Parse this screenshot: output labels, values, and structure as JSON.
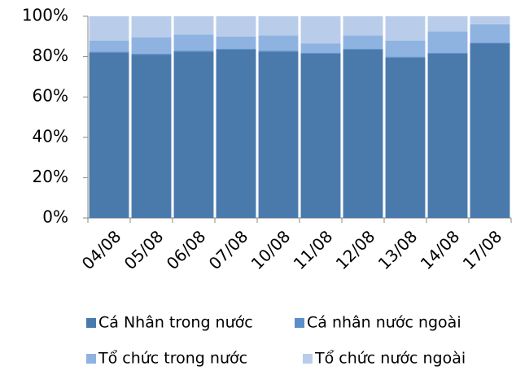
{
  "chart_data": {
    "type": "stacked_bar",
    "categories": [
      "04/08",
      "05/08",
      "06/08",
      "07/08",
      "10/08",
      "11/08",
      "12/08",
      "13/08",
      "14/08",
      "17/08"
    ],
    "series": [
      {
        "name": "Cá Nhân trong nước",
        "color": "#4a7aab",
        "values": [
          82,
          81,
          82.5,
          83.5,
          82.5,
          81.5,
          83.5,
          79.5,
          81.5,
          86.5
        ]
      },
      {
        "name": "Cá nhân nước ngoài",
        "color": "#5b8fcc",
        "values": [
          0.5,
          0.5,
          0.5,
          0.5,
          0.5,
          0.5,
          0.5,
          0.5,
          0.5,
          0.5
        ]
      },
      {
        "name": "Tổ chức trong nước",
        "color": "#8fb3e0",
        "values": [
          5.5,
          8,
          8,
          6,
          7.5,
          4.5,
          6.5,
          8,
          10.5,
          9
        ]
      },
      {
        "name": "Tổ chức nước ngoài",
        "color": "#b9cdeb",
        "values": [
          12,
          10.5,
          9,
          10,
          9.5,
          13.5,
          9.5,
          12,
          7.5,
          4
        ]
      }
    ],
    "ylim": [
      0,
      100
    ],
    "yticks": [
      {
        "value": 0,
        "label": "0%"
      },
      {
        "value": 20,
        "label": "20%"
      },
      {
        "value": 40,
        "label": "40%"
      },
      {
        "value": 60,
        "label": "60%"
      },
      {
        "value": 80,
        "label": "80%"
      },
      {
        "value": 100,
        "label": "100%"
      }
    ],
    "grid": false
  }
}
